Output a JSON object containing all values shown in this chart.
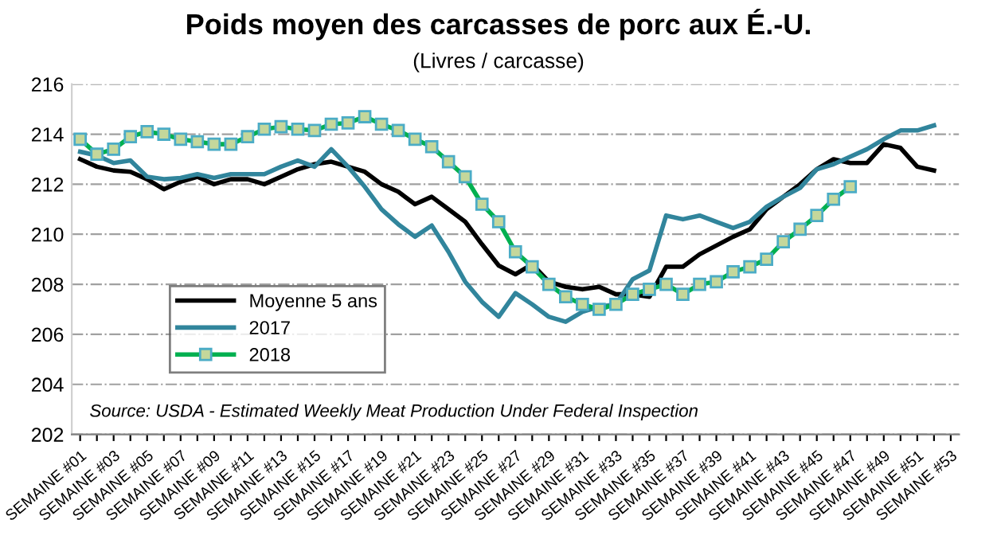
{
  "chart_data": {
    "type": "line",
    "title": "Poids moyen des carcasses de porc aux É.-U.",
    "subtitle": "(Livres / carcasse)",
    "categories": [
      "SEMAINE #01",
      null,
      "SEMAINE #03",
      null,
      "SEMAINE #05",
      null,
      "SEMAINE #07",
      null,
      "SEMAINE #09",
      null,
      "SEMAINE #11",
      null,
      "SEMAINE #13",
      null,
      "SEMAINE #15",
      null,
      "SEMAINE #17",
      null,
      "SEMAINE #19",
      null,
      "SEMAINE #21",
      null,
      "SEMAINE #23",
      null,
      "SEMAINE #25",
      null,
      "SEMAINE #27",
      null,
      "SEMAINE #29",
      null,
      "SEMAINE #31",
      null,
      "SEMAINE #33",
      null,
      "SEMAINE #35",
      null,
      "SEMAINE #37",
      null,
      "SEMAINE #39",
      null,
      "SEMAINE #41",
      null,
      "SEMAINE #43",
      null,
      "SEMAINE #45",
      null,
      "SEMAINE #47",
      null,
      "SEMAINE #49",
      null,
      "SEMAINE #51",
      null,
      "SEMAINE #53"
    ],
    "series": [
      {
        "name": "Moyenne 5 ans",
        "color": "#000000",
        "marker": "none",
        "values": [
          213.0,
          212.7,
          212.55,
          212.5,
          212.2,
          211.8,
          212.1,
          212.3,
          212.0,
          212.2,
          212.2,
          212.0,
          212.3,
          212.6,
          212.8,
          212.9,
          212.7,
          212.5,
          212.0,
          211.7,
          211.2,
          211.5,
          211.0,
          210.5,
          209.6,
          208.75,
          208.4,
          208.8,
          208.1,
          207.9,
          207.8,
          207.9,
          207.6,
          207.6,
          207.5,
          208.7,
          208.7,
          209.2,
          209.55,
          209.9,
          210.2,
          211.0,
          211.5,
          212.0,
          212.6,
          213.0,
          212.85,
          212.85,
          213.6,
          213.45,
          212.7,
          212.55,
          null
        ]
      },
      {
        "name": "2017",
        "color": "#31859c",
        "marker": "none",
        "values": [
          213.3,
          213.15,
          212.85,
          212.95,
          212.3,
          212.2,
          212.25,
          212.4,
          212.25,
          212.4,
          212.4,
          212.4,
          212.7,
          212.95,
          212.7,
          213.4,
          212.7,
          211.9,
          211.0,
          210.4,
          209.9,
          210.35,
          209.3,
          208.1,
          207.3,
          206.7,
          207.65,
          207.2,
          206.7,
          206.5,
          206.9,
          207.1,
          207.2,
          208.2,
          208.55,
          210.75,
          210.6,
          210.75,
          210.5,
          210.25,
          210.5,
          211.1,
          211.5,
          211.85,
          212.6,
          212.8,
          213.1,
          213.4,
          213.8,
          214.15,
          214.15,
          214.35,
          null
        ]
      },
      {
        "name": "2018",
        "color": "#00b050",
        "marker": "square",
        "values": [
          213.8,
          213.2,
          213.4,
          213.9,
          214.1,
          214.0,
          213.8,
          213.7,
          213.6,
          213.6,
          213.9,
          214.2,
          214.3,
          214.2,
          214.15,
          214.4,
          214.45,
          214.7,
          214.4,
          214.15,
          213.8,
          213.5,
          212.9,
          212.3,
          211.2,
          210.5,
          209.3,
          208.7,
          208.0,
          207.5,
          207.2,
          207.0,
          207.2,
          207.6,
          207.8,
          208.0,
          207.6,
          208.0,
          208.1,
          208.5,
          208.7,
          209.0,
          209.7,
          210.2,
          210.75,
          211.4,
          211.9,
          null,
          null,
          null,
          null,
          null,
          null
        ]
      }
    ],
    "ylim": [
      202,
      216
    ],
    "yticks": [
      202,
      204,
      206,
      208,
      210,
      212,
      214,
      216
    ],
    "grid": "y",
    "legend": "bottom left",
    "line_style": "solid",
    "annotations": [
      "Source: USDA - Estimated Weekly Meat Production Under Federal Inspection"
    ]
  }
}
